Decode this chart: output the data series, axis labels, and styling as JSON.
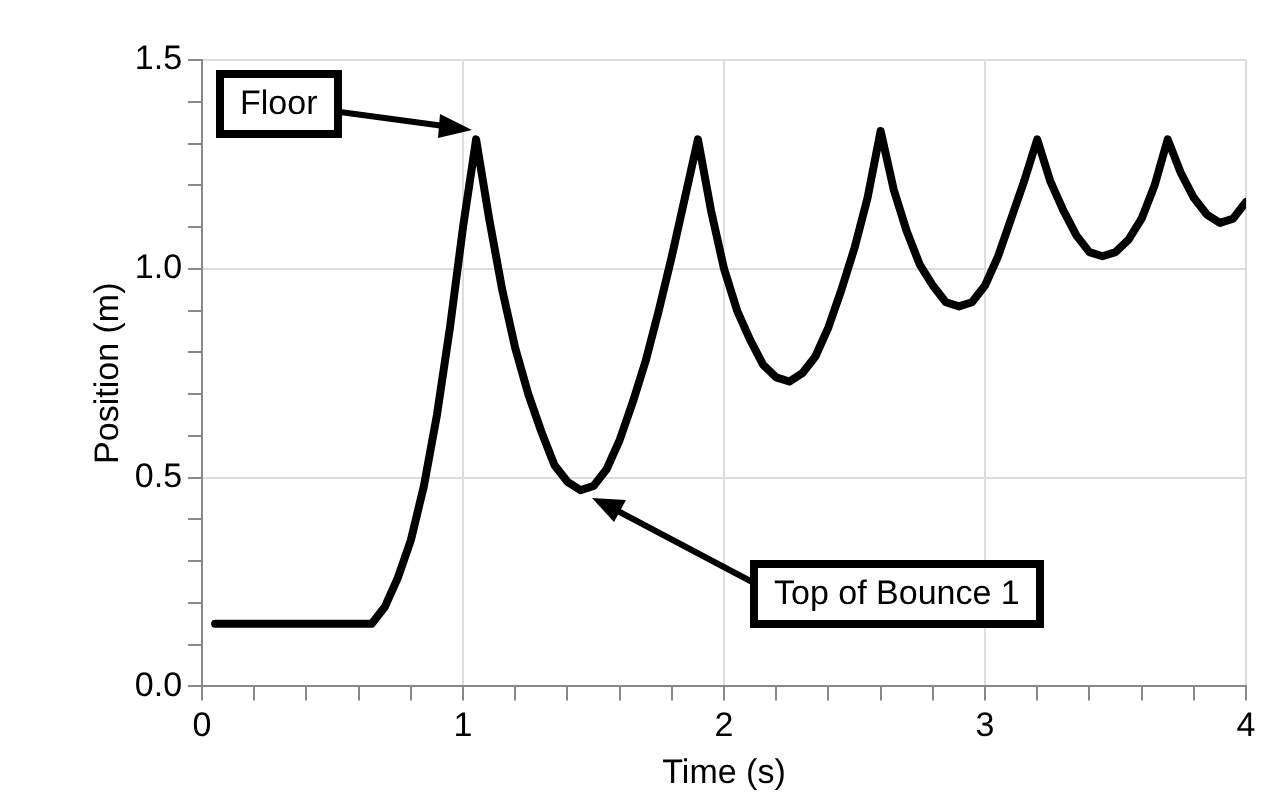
{
  "chart_data": {
    "type": "line",
    "xlabel": "Time (s)",
    "ylabel": "Position (m)",
    "xlim": [
      0,
      4
    ],
    "ylim": [
      0,
      1.5
    ],
    "xticks": [
      0,
      {
        "value": 0.2,
        "label": null
      },
      {
        "value": 0.4,
        "label": null
      },
      {
        "value": 0.6,
        "label": null
      },
      {
        "value": 0.8,
        "label": null
      },
      1,
      {
        "value": 1.2,
        "label": null
      },
      {
        "value": 1.4,
        "label": null
      },
      {
        "value": 1.6,
        "label": null
      },
      {
        "value": 1.8,
        "label": null
      },
      2,
      {
        "value": 2.2,
        "label": null
      },
      {
        "value": 2.4,
        "label": null
      },
      {
        "value": 2.6,
        "label": null
      },
      {
        "value": 2.8,
        "label": null
      },
      3,
      {
        "value": 3.2,
        "label": null
      },
      {
        "value": 3.4,
        "label": null
      },
      {
        "value": 3.6,
        "label": null
      },
      {
        "value": 3.8,
        "label": null
      },
      4
    ],
    "yticks": [
      {
        "value": 0,
        "label": "0.0"
      },
      {
        "value": 0.1,
        "label": null
      },
      {
        "value": 0.2,
        "label": null
      },
      {
        "value": 0.3,
        "label": null
      },
      {
        "value": 0.4,
        "label": null
      },
      0.5,
      {
        "value": 0.6,
        "label": null
      },
      {
        "value": 0.7,
        "label": null
      },
      {
        "value": 0.8,
        "label": null
      },
      {
        "value": 0.9,
        "label": null
      },
      {
        "value": 1,
        "label": "1.0"
      },
      {
        "value": 1.1,
        "label": null
      },
      {
        "value": 1.2,
        "label": null
      },
      {
        "value": 1.3,
        "label": null
      },
      {
        "value": 1.4,
        "label": null
      },
      1.5
    ],
    "grid": true,
    "legend": false,
    "marker": "none",
    "line_style": "solid",
    "series": [
      {
        "color": "#000000",
        "x": [
          0.05,
          0.3,
          0.5,
          0.65,
          0.7,
          0.75,
          0.8,
          0.85,
          0.9,
          0.95,
          1.0,
          1.05,
          1.1,
          1.15,
          1.2,
          1.25,
          1.3,
          1.35,
          1.4,
          1.45,
          1.5,
          1.55,
          1.6,
          1.65,
          1.7,
          1.75,
          1.8,
          1.85,
          1.9,
          1.95,
          2.0,
          2.05,
          2.1,
          2.15,
          2.2,
          2.25,
          2.3,
          2.35,
          2.4,
          2.45,
          2.5,
          2.55,
          2.6,
          2.65,
          2.7,
          2.75,
          2.8,
          2.85,
          2.9,
          2.95,
          3.0,
          3.05,
          3.1,
          3.15,
          3.2,
          3.25,
          3.3,
          3.35,
          3.4,
          3.45,
          3.5,
          3.55,
          3.6,
          3.65,
          3.7,
          3.75,
          3.8,
          3.85,
          3.9,
          3.95,
          4.0
        ],
        "values": [
          0.15,
          0.15,
          0.15,
          0.15,
          0.19,
          0.26,
          0.35,
          0.48,
          0.65,
          0.86,
          1.1,
          1.31,
          1.12,
          0.95,
          0.81,
          0.7,
          0.61,
          0.53,
          0.49,
          0.47,
          0.48,
          0.52,
          0.59,
          0.68,
          0.78,
          0.9,
          1.03,
          1.17,
          1.31,
          1.14,
          1.0,
          0.9,
          0.83,
          0.77,
          0.74,
          0.73,
          0.75,
          0.79,
          0.86,
          0.95,
          1.05,
          1.17,
          1.33,
          1.19,
          1.09,
          1.01,
          0.96,
          0.92,
          0.91,
          0.92,
          0.96,
          1.03,
          1.12,
          1.21,
          1.31,
          1.21,
          1.14,
          1.08,
          1.04,
          1.03,
          1.04,
          1.07,
          1.12,
          1.2,
          1.31,
          1.23,
          1.17,
          1.13,
          1.11,
          1.12,
          1.16
        ]
      }
    ],
    "annotations": [
      "Floor",
      "Top of Bounce 1"
    ]
  }
}
